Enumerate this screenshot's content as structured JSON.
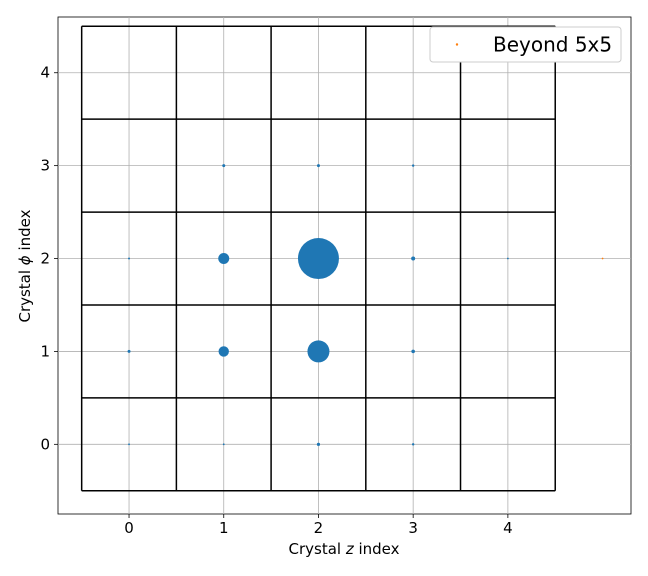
{
  "chart_data": {
    "type": "scatter",
    "xlabel_prefix": "Crystal ",
    "xlabel_var": "z",
    "xlabel_suffix": " index",
    "ylabel_prefix": "Crystal ",
    "ylabel_var": "ϕ",
    "ylabel_suffix": " index",
    "xlim": [
      -0.75,
      5.3
    ],
    "ylim": [
      -0.75,
      4.6
    ],
    "x_ticks": [
      0,
      1,
      2,
      3,
      4
    ],
    "y_ticks": [
      0,
      1,
      2,
      3,
      4
    ],
    "grid": true,
    "crystal_grid": {
      "min": -0.5,
      "max": 4.5,
      "step": 1
    },
    "legend": {
      "placement": "top-right",
      "entries": [
        "Beyond 5x5"
      ]
    },
    "series": [
      {
        "color": "#1f77b4",
        "points": [
          {
            "x": 0,
            "y": 0,
            "size": 0.5
          },
          {
            "x": 1,
            "y": 0,
            "size": 0.5
          },
          {
            "x": 2,
            "y": 0,
            "size": 1.6
          },
          {
            "x": 3,
            "y": 0,
            "size": 1.2
          },
          {
            "x": 0,
            "y": 1,
            "size": 1.5
          },
          {
            "x": 1,
            "y": 1,
            "size": 5.2
          },
          {
            "x": 2,
            "y": 1,
            "size": 11.0
          },
          {
            "x": 3,
            "y": 1,
            "size": 1.8
          },
          {
            "x": 0,
            "y": 2,
            "size": 1.0
          },
          {
            "x": 1,
            "y": 2,
            "size": 5.5
          },
          {
            "x": 2,
            "y": 2,
            "size": 20.5
          },
          {
            "x": 3,
            "y": 2,
            "size": 2.0
          },
          {
            "x": 4,
            "y": 2,
            "size": 0.9
          },
          {
            "x": 1,
            "y": 3,
            "size": 1.5
          },
          {
            "x": 2,
            "y": 3,
            "size": 1.5
          },
          {
            "x": 3,
            "y": 3,
            "size": 1.2
          }
        ]
      },
      {
        "name": "Beyond 5x5",
        "color": "#ff7f0e",
        "points": [
          {
            "x": 5,
            "y": 2,
            "size": 0.5
          }
        ]
      }
    ]
  }
}
